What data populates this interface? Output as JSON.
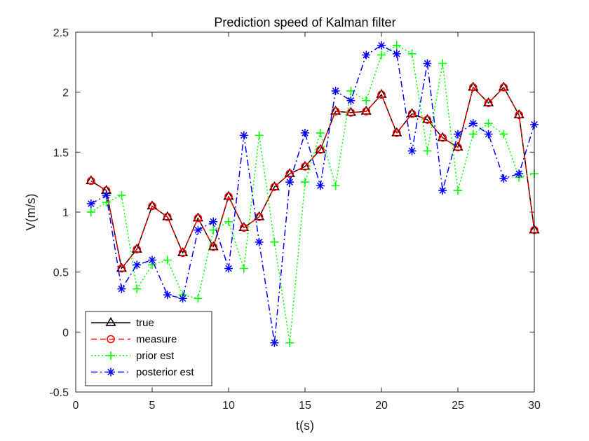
{
  "chart_data": {
    "type": "line",
    "title": "Prediction speed of Kalman filter",
    "xlabel": "t(s)",
    "ylabel": "V(m/s)",
    "xlim": [
      0,
      30
    ],
    "ylim": [
      -0.5,
      2.5
    ],
    "xticks": [
      0,
      5,
      10,
      15,
      20,
      25,
      30
    ],
    "xtick_labels": [
      "0",
      "5",
      "10",
      "15",
      "20",
      "25",
      "30"
    ],
    "yticks": [
      -0.5,
      0,
      0.5,
      1,
      1.5,
      2,
      2.5
    ],
    "ytick_labels": [
      "-0.5",
      "0",
      "0.5",
      "1",
      "1.5",
      "2",
      "2.5"
    ],
    "grid": false,
    "legend_position": "bottom-left",
    "x": [
      1,
      2,
      3,
      4,
      5,
      6,
      7,
      8,
      9,
      10,
      11,
      12,
      13,
      14,
      15,
      16,
      17,
      18,
      19,
      20,
      21,
      22,
      23,
      24,
      25,
      26,
      27,
      28,
      29,
      30
    ],
    "series": [
      {
        "name": "true",
        "color": "#000000",
        "line_style": "solid",
        "marker": "triangle",
        "values": [
          1.26,
          1.18,
          0.53,
          0.69,
          1.05,
          0.96,
          0.66,
          0.95,
          0.71,
          1.13,
          0.87,
          0.96,
          1.21,
          1.32,
          1.38,
          1.52,
          1.84,
          1.83,
          1.84,
          1.98,
          1.66,
          1.82,
          1.77,
          1.62,
          1.54,
          2.04,
          1.91,
          2.04,
          1.81,
          0.85
        ]
      },
      {
        "name": "measure",
        "color": "#ff0000",
        "line_style": "dashed",
        "marker": "circle",
        "values": [
          1.26,
          1.18,
          0.53,
          0.69,
          1.05,
          0.96,
          0.66,
          0.95,
          0.71,
          1.13,
          0.87,
          0.96,
          1.21,
          1.32,
          1.38,
          1.52,
          1.84,
          1.83,
          1.84,
          1.98,
          1.66,
          1.82,
          1.77,
          1.62,
          1.54,
          2.04,
          1.91,
          2.04,
          1.81,
          0.85
        ]
      },
      {
        "name": "prior est",
        "color": "#00ff00",
        "line_style": "dotted",
        "marker": "plus",
        "values": [
          1.0,
          1.08,
          1.14,
          0.36,
          0.56,
          0.6,
          0.31,
          0.28,
          0.85,
          0.92,
          0.53,
          1.64,
          0.75,
          -0.09,
          1.25,
          1.66,
          1.22,
          2.01,
          1.93,
          2.31,
          2.39,
          2.32,
          1.51,
          2.24,
          1.18,
          1.65,
          1.74,
          1.65,
          1.29,
          1.32
        ]
      },
      {
        "name": "posterior est",
        "color": "#0000ff",
        "line_style": "dashdot",
        "marker": "asterisk",
        "values": [
          1.07,
          1.14,
          0.36,
          0.56,
          0.6,
          0.31,
          0.28,
          0.85,
          0.92,
          0.53,
          1.64,
          0.75,
          -0.09,
          1.25,
          1.66,
          1.22,
          2.01,
          1.93,
          2.31,
          2.39,
          2.32,
          1.51,
          2.24,
          1.18,
          1.65,
          1.74,
          1.65,
          1.28,
          1.32,
          1.73
        ]
      }
    ]
  }
}
